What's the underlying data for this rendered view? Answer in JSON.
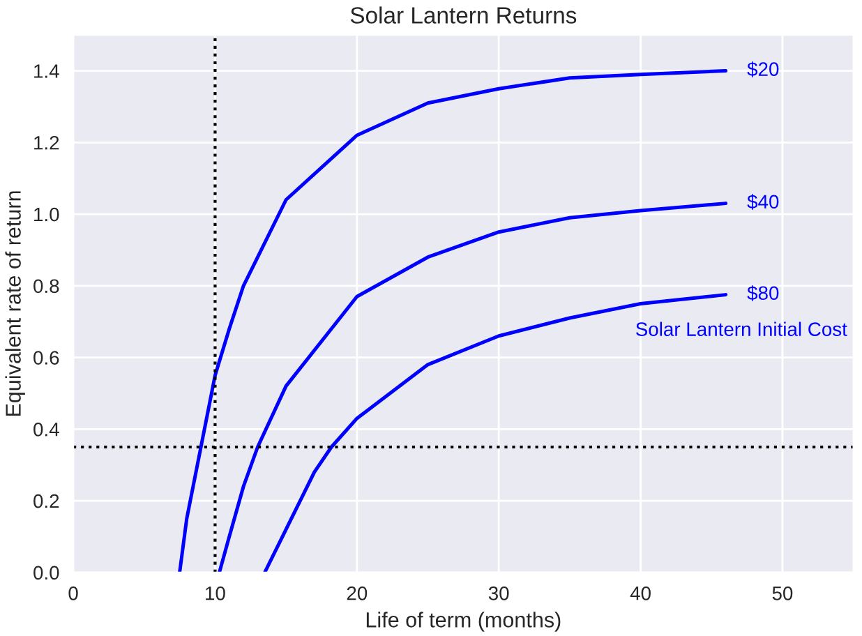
{
  "chart_data": {
    "type": "line",
    "title": "Solar Lantern Returns",
    "xlabel": "Life of term (months)",
    "ylabel": "Equivalent rate of return",
    "xlim": [
      0,
      55
    ],
    "ylim": [
      0,
      1.5
    ],
    "xticks": [
      0,
      10,
      20,
      30,
      40,
      50
    ],
    "yticks": [
      {
        "value": 0,
        "label": "0.0"
      },
      0.2,
      0.4,
      0.6,
      0.8,
      {
        "value": 1,
        "label": "1.0"
      },
      1.2,
      1.4
    ],
    "grid": true,
    "legend": false,
    "marker": "none",
    "line_style": "solid",
    "series": [
      {
        "name": "$20",
        "color": "#0000ff",
        "x": [
          7.5,
          8,
          9,
          10,
          11,
          12,
          15,
          20,
          25,
          30,
          35,
          40,
          46
        ],
        "values": [
          0,
          0.15,
          0.35,
          0.55,
          0.68,
          0.8,
          1.04,
          1.22,
          1.31,
          1.35,
          1.38,
          1.39,
          1.4
        ]
      },
      {
        "name": "$40",
        "color": "#0000ff",
        "x": [
          10.3,
          11,
          12,
          13,
          15,
          20,
          25,
          30,
          35,
          40,
          46
        ],
        "values": [
          0,
          0.1,
          0.24,
          0.35,
          0.52,
          0.77,
          0.88,
          0.95,
          0.99,
          1.01,
          1.03
        ]
      },
      {
        "name": "$80",
        "color": "#0000ff",
        "x": [
          13.5,
          15,
          17,
          18.2,
          20,
          25,
          30,
          35,
          40,
          46
        ],
        "values": [
          0,
          0.12,
          0.28,
          0.35,
          0.43,
          0.58,
          0.66,
          0.71,
          0.75,
          0.775
        ]
      }
    ],
    "ref_lines": [
      {
        "axis": "x",
        "value": 10,
        "color": "#000000",
        "line_style": "dotted"
      },
      {
        "axis": "y",
        "value": 0.35,
        "color": "#000000",
        "line_style": "dotted"
      }
    ],
    "annotations": [
      {
        "text": "Solar Lantern Initial Cost",
        "x": 46,
        "y": 0.775
      }
    ]
  }
}
